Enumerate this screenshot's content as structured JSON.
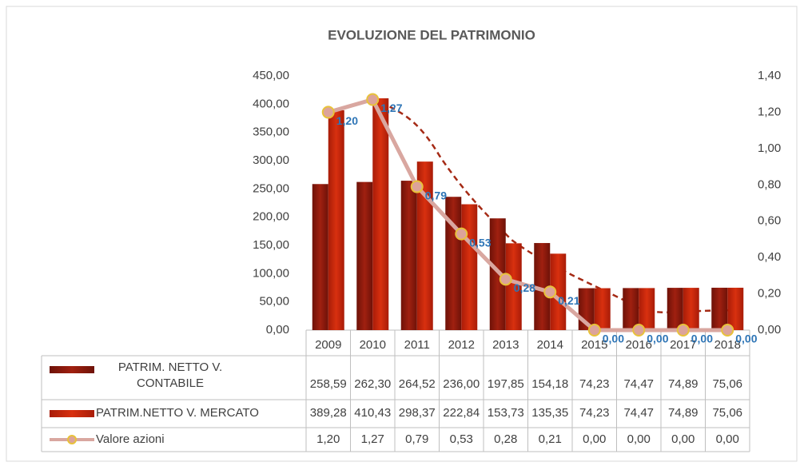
{
  "chart_data": {
    "type": "bar",
    "title": "EVOLUZIONE DEL PATRIMONIO",
    "categories": [
      "2009",
      "2010",
      "2011",
      "2012",
      "2013",
      "2014",
      "2015",
      "2016",
      "2017",
      "2018"
    ],
    "series": [
      {
        "name": "PATRIM. NETTO V. CONTABILE",
        "color": "#8e1a0c",
        "values": [
          258.59,
          262.3,
          264.52,
          236.0,
          197.85,
          154.18,
          74.23,
          74.47,
          74.89,
          75.06
        ],
        "value_labels": [
          "258,59",
          "262,30",
          "264,52",
          "236,00",
          "197,85",
          "154,18",
          "74,23",
          "74,47",
          "74,89",
          "75,06"
        ]
      },
      {
        "name": "PATRIM.NETTO V. MERCATO",
        "color": "#c4230c",
        "values": [
          389.28,
          410.43,
          298.37,
          222.84,
          153.73,
          135.35,
          74.23,
          74.47,
          74.89,
          75.06
        ],
        "value_labels": [
          "389,28",
          "410,43",
          "298,37",
          "222,84",
          "153,73",
          "135,35",
          "74,23",
          "74,47",
          "74,89",
          "75,06"
        ]
      },
      {
        "name": "Valore azioni",
        "color": "#d9a7a0",
        "type": "line",
        "axis": "y2",
        "values": [
          1.2,
          1.27,
          0.79,
          0.53,
          0.28,
          0.21,
          0.0,
          0.0,
          0.0,
          0.0
        ],
        "value_labels": [
          "1,20",
          "1,27",
          "0,79",
          "0,53",
          "0,28",
          "0,21",
          "0,00",
          "0,00",
          "0,00",
          "0,00"
        ]
      }
    ],
    "ylim": [
      0,
      450
    ],
    "yticks": [
      {
        "value": 0,
        "label": "0,00"
      },
      {
        "value": 50,
        "label": "50,00"
      },
      {
        "value": 100,
        "label": "100,00"
      },
      {
        "value": 150,
        "label": "150,00"
      },
      {
        "value": 200,
        "label": "200,00"
      },
      {
        "value": 250,
        "label": "250,00"
      },
      {
        "value": 300,
        "label": "300,00"
      },
      {
        "value": 350,
        "label": "350,00"
      },
      {
        "value": 400,
        "label": "400,00"
      },
      {
        "value": 450,
        "label": "450,00"
      }
    ],
    "y2lim": [
      0,
      1.4
    ],
    "y2ticks": [
      {
        "value": 0,
        "label": "0,00"
      },
      {
        "value": 0.2,
        "label": "0,20"
      },
      {
        "value": 0.4,
        "label": "0,40"
      },
      {
        "value": 0.6,
        "label": "0,60"
      },
      {
        "value": 0.8,
        "label": "0,80"
      },
      {
        "value": 1.0,
        "label": "1,00"
      },
      {
        "value": 1.2,
        "label": "1,20"
      },
      {
        "value": 1.4,
        "label": "1,40"
      }
    ],
    "grid": false
  }
}
